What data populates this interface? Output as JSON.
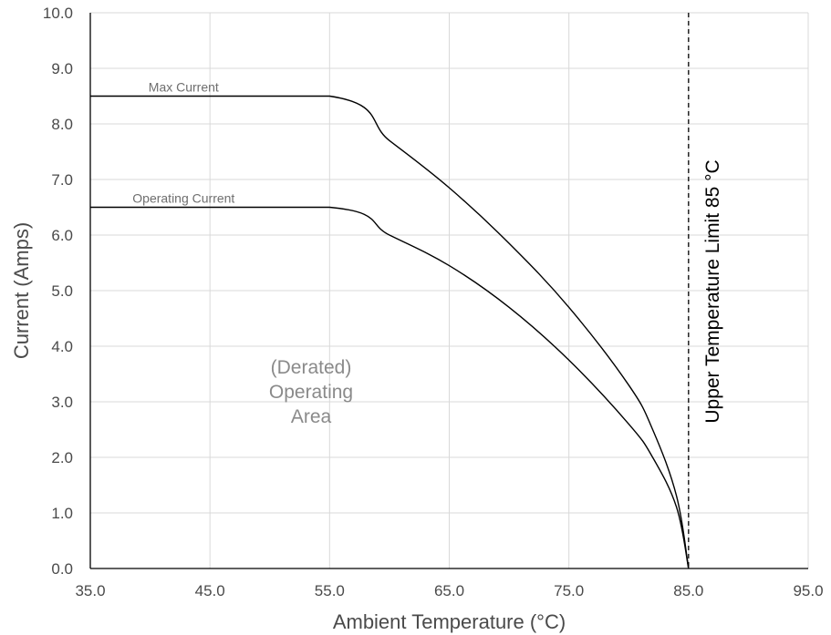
{
  "chart_data": {
    "type": "line",
    "xlabel": "Ambient Temperature (°C)",
    "ylabel": "Current (Amps)",
    "xlim": [
      35,
      95
    ],
    "ylim": [
      0,
      10
    ],
    "x_ticks": [
      "35.0",
      "45.0",
      "55.0",
      "65.0",
      "75.0",
      "85.0",
      "95.0"
    ],
    "y_ticks": [
      "0.0",
      "1.0",
      "2.0",
      "3.0",
      "4.0",
      "5.0",
      "6.0",
      "7.0",
      "8.0",
      "9.0",
      "10.0"
    ],
    "grid": true,
    "series": [
      {
        "name": "Max Current",
        "color": "#000000",
        "x": [
          35,
          55,
          60,
          65,
          70,
          75,
          80,
          82,
          84,
          85
        ],
        "y": [
          8.5,
          8.5,
          7.7,
          6.85,
          5.85,
          4.7,
          3.3,
          2.5,
          1.3,
          0.0
        ]
      },
      {
        "name": "Operating Current",
        "color": "#000000",
        "x": [
          35,
          55,
          60,
          65,
          70,
          75,
          80,
          82,
          84,
          85
        ],
        "y": [
          6.5,
          6.5,
          6.0,
          5.45,
          4.7,
          3.75,
          2.6,
          2.0,
          1.1,
          0.0
        ]
      }
    ],
    "annotations": {
      "region_lines": [
        "(Derated)",
        "Operating",
        "Area"
      ],
      "limit_line": {
        "x": 85,
        "label": "Upper Temperature Limit 85 °C",
        "style": "dashed"
      }
    }
  }
}
